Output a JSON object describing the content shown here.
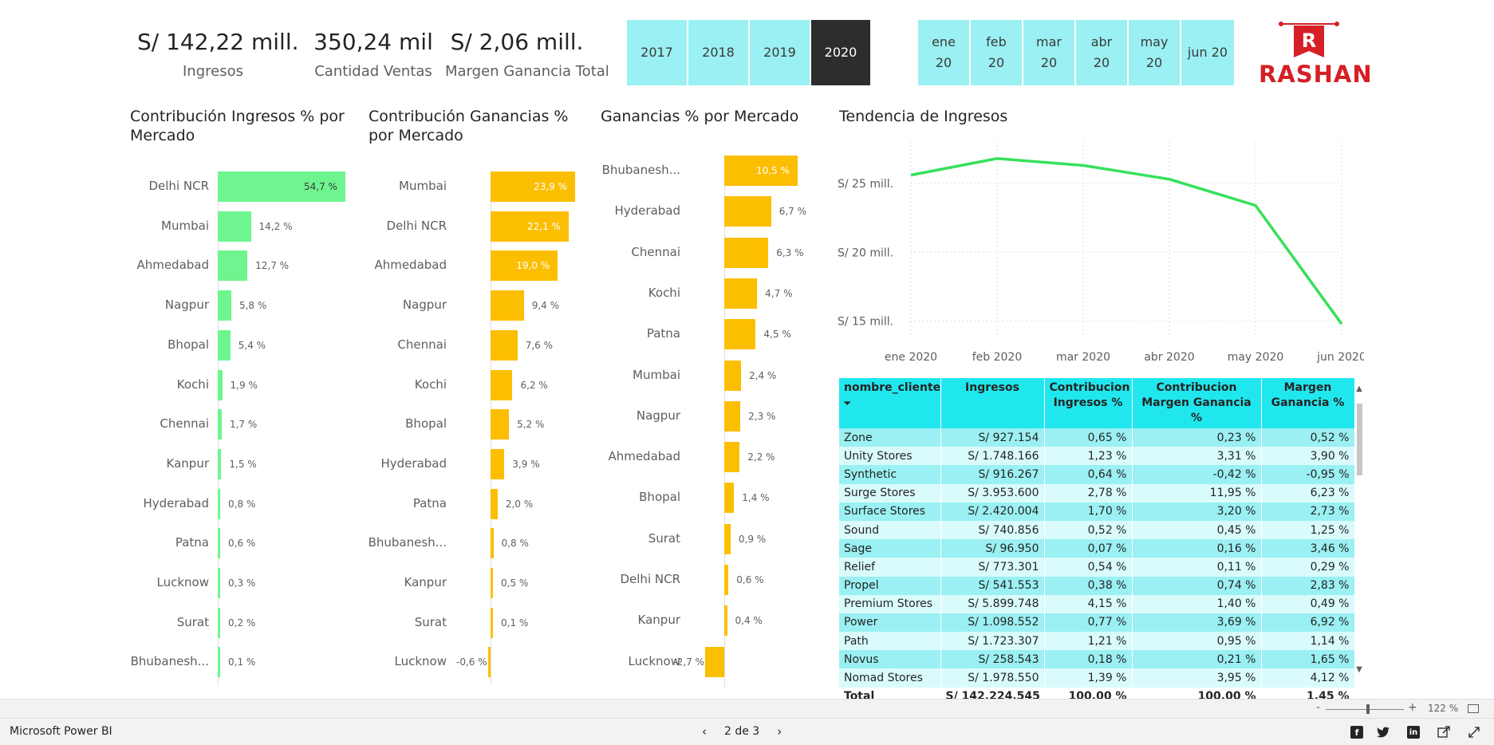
{
  "kpis": [
    {
      "value": "S/ 142,22 mill.",
      "label": "Ingresos"
    },
    {
      "value": "350,24 mil",
      "label": "Cantidad Ventas"
    },
    {
      "value": "S/ 2,06 mill.",
      "label": "Margen Ganancia Total"
    }
  ],
  "year_slicer": [
    {
      "label": "2017",
      "selected": false
    },
    {
      "label": "2018",
      "selected": false
    },
    {
      "label": "2019",
      "selected": false
    },
    {
      "label": "2020",
      "selected": true
    }
  ],
  "month_slicer": [
    {
      "line1": "ene",
      "line2": "20"
    },
    {
      "line1": "feb",
      "line2": "20"
    },
    {
      "line1": "mar",
      "line2": "20"
    },
    {
      "line1": "abr",
      "line2": "20"
    },
    {
      "line1": "may",
      "line2": "20"
    },
    {
      "line1": "jun 20",
      "line2": ""
    }
  ],
  "logo": {
    "text": "RASHAN",
    "initial": "R",
    "color": "#d61f26"
  },
  "charts": {
    "ingresos": {
      "title": "Contribución Ingresos % por Mercado",
      "color": "#6ef58f",
      "rows": [
        {
          "name": "Delhi NCR",
          "value": 54.7,
          "label": "54,7 %"
        },
        {
          "name": "Mumbai",
          "value": 14.2,
          "label": "14,2 %"
        },
        {
          "name": "Ahmedabad",
          "value": 12.7,
          "label": "12,7 %"
        },
        {
          "name": "Nagpur",
          "value": 5.8,
          "label": "5,8 %"
        },
        {
          "name": "Bhopal",
          "value": 5.4,
          "label": "5,4 %"
        },
        {
          "name": "Kochi",
          "value": 1.9,
          "label": "1,9 %"
        },
        {
          "name": "Chennai",
          "value": 1.7,
          "label": "1,7 %"
        },
        {
          "name": "Kanpur",
          "value": 1.5,
          "label": "1,5 %"
        },
        {
          "name": "Hyderabad",
          "value": 0.8,
          "label": "0,8 %"
        },
        {
          "name": "Patna",
          "value": 0.6,
          "label": "0,6 %"
        },
        {
          "name": "Lucknow",
          "value": 0.3,
          "label": "0,3 %"
        },
        {
          "name": "Surat",
          "value": 0.2,
          "label": "0,2 %"
        },
        {
          "name": "Bhubanesh...",
          "value": 0.1,
          "label": "0,1 %"
        }
      ]
    },
    "ganancias": {
      "title": "Contribución Ganancias % por Mercado",
      "color": "#fcbe00",
      "rows": [
        {
          "name": "Mumbai",
          "value": 23.9,
          "label": "23,9 %"
        },
        {
          "name": "Delhi NCR",
          "value": 22.1,
          "label": "22,1 %"
        },
        {
          "name": "Ahmedabad",
          "value": 19.0,
          "label": "19,0 %"
        },
        {
          "name": "Nagpur",
          "value": 9.4,
          "label": "9,4 %"
        },
        {
          "name": "Chennai",
          "value": 7.6,
          "label": "7,6 %"
        },
        {
          "name": "Kochi",
          "value": 6.2,
          "label": "6,2 %"
        },
        {
          "name": "Bhopal",
          "value": 5.2,
          "label": "5,2 %"
        },
        {
          "name": "Hyderabad",
          "value": 3.9,
          "label": "3,9 %"
        },
        {
          "name": "Patna",
          "value": 2.0,
          "label": "2,0 %"
        },
        {
          "name": "Bhubanesh...",
          "value": 0.8,
          "label": "0,8 %"
        },
        {
          "name": "Kanpur",
          "value": 0.5,
          "label": "0,5 %"
        },
        {
          "name": "Surat",
          "value": 0.1,
          "label": "0,1 %"
        },
        {
          "name": "Lucknow",
          "value": -0.6,
          "label": "-0,6 %"
        }
      ]
    },
    "mercado": {
      "title": "Ganancias % por Mercado",
      "color": "#fcbe00",
      "rows": [
        {
          "name": "Bhubanesh...",
          "value": 10.5,
          "label": "10,5 %"
        },
        {
          "name": "Hyderabad",
          "value": 6.7,
          "label": "6,7 %"
        },
        {
          "name": "Chennai",
          "value": 6.3,
          "label": "6,3 %"
        },
        {
          "name": "Kochi",
          "value": 4.7,
          "label": "4,7 %"
        },
        {
          "name": "Patna",
          "value": 4.5,
          "label": "4,5 %"
        },
        {
          "name": "Mumbai",
          "value": 2.4,
          "label": "2,4 %"
        },
        {
          "name": "Nagpur",
          "value": 2.3,
          "label": "2,3 %"
        },
        {
          "name": "Ahmedabad",
          "value": 2.2,
          "label": "2,2 %"
        },
        {
          "name": "Bhopal",
          "value": 1.4,
          "label": "1,4 %"
        },
        {
          "name": "Surat",
          "value": 0.9,
          "label": "0,9 %"
        },
        {
          "name": "Delhi NCR",
          "value": 0.6,
          "label": "0,6 %"
        },
        {
          "name": "Kanpur",
          "value": 0.4,
          "label": "0,4 %"
        },
        {
          "name": "Lucknow",
          "value": -2.7,
          "label": "-2,7 %"
        }
      ]
    }
  },
  "chart_data": {
    "type": "line",
    "title": "Tendencia de Ingresos",
    "x": [
      "ene 2020",
      "feb 2020",
      "mar 2020",
      "abr 2020",
      "may 2020",
      "jun 2020"
    ],
    "series": [
      {
        "values": [
          25.6,
          26.8,
          26.3,
          25.3,
          23.4,
          14.8
        ]
      }
    ],
    "yticks": [
      {
        "value": 25,
        "label": "S/ 25 mill."
      },
      {
        "value": 20,
        "label": "S/ 20 mill."
      },
      {
        "value": 15,
        "label": "S/ 15 mill."
      }
    ],
    "ylim": [
      14,
      28
    ],
    "color": "#37e05c",
    "grid": true
  },
  "table": {
    "headers": [
      "nombre_cliente",
      "Ingresos",
      "Contribucion Ingresos %",
      "Contribucion Margen Ganancia %",
      "Margen Ganancia %"
    ],
    "sort_indicator": "⏷",
    "rows": [
      [
        "Zone",
        "S/ 927.154",
        "0,65 %",
        "0,23 %",
        "0,52 %"
      ],
      [
        "Unity Stores",
        "S/ 1.748.166",
        "1,23 %",
        "3,31 %",
        "3,90 %"
      ],
      [
        "Synthetic",
        "S/ 916.267",
        "0,64 %",
        "-0,42 %",
        "-0,95 %"
      ],
      [
        "Surge Stores",
        "S/ 3.953.600",
        "2,78 %",
        "11,95 %",
        "6,23 %"
      ],
      [
        "Surface Stores",
        "S/ 2.420.004",
        "1,70 %",
        "3,20 %",
        "2,73 %"
      ],
      [
        "Sound",
        "S/ 740.856",
        "0,52 %",
        "0,45 %",
        "1,25 %"
      ],
      [
        "Sage",
        "S/ 96.950",
        "0,07 %",
        "0,16 %",
        "3,46 %"
      ],
      [
        "Relief",
        "S/ 773.301",
        "0,54 %",
        "0,11 %",
        "0,29 %"
      ],
      [
        "Propel",
        "S/ 541.553",
        "0,38 %",
        "0,74 %",
        "2,83 %"
      ],
      [
        "Premium Stores",
        "S/ 5.899.748",
        "4,15 %",
        "1,40 %",
        "0,49 %"
      ],
      [
        "Power",
        "S/ 1.098.552",
        "0,77 %",
        "3,69 %",
        "6,92 %"
      ],
      [
        "Path",
        "S/ 1.723.307",
        "1,21 %",
        "0,95 %",
        "1,14 %"
      ],
      [
        "Novus",
        "S/ 258.543",
        "0,18 %",
        "0,21 %",
        "1,65 %"
      ],
      [
        "Nomad Stores",
        "S/ 1.978.550",
        "1,39 %",
        "3,95 %",
        "4,12 %"
      ]
    ],
    "total": [
      "Total",
      "S/ 142.224.545",
      "100,00 %",
      "100,00 %",
      "1,45 %"
    ]
  },
  "zoom": {
    "minus": "-",
    "plus": "+",
    "value": "122 %"
  },
  "footer": {
    "brand": "Microsoft Power BI",
    "page": "2 de 3",
    "prev": "‹",
    "next": "›",
    "social": [
      "facebook-icon",
      "twitter-icon",
      "linkedin-icon",
      "share-icon",
      "expand-icon"
    ]
  }
}
